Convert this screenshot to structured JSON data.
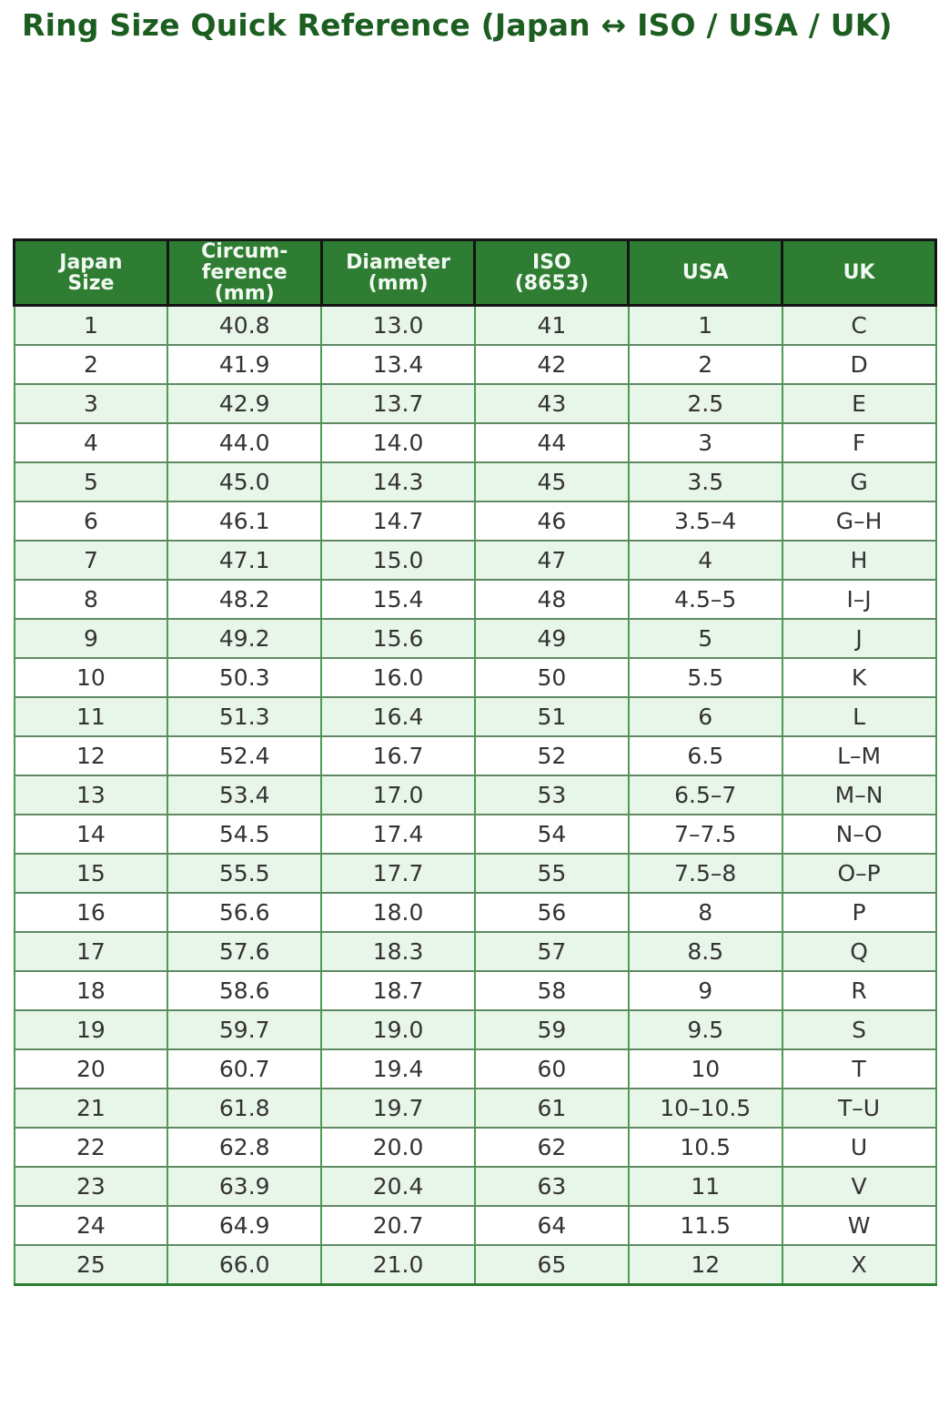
{
  "title": "Ring Size Quick Reference (Japan ↔ ISO / USA / UK)",
  "colors": {
    "title_green": "#1b5e20",
    "header_bg": "#2e7d32",
    "header_text": "#f2f8f2",
    "header_border": "#141414",
    "row_alt_bg": "#e8f5e9",
    "row_bg": "#ffffff",
    "body_border_vertical": "#4d9c51",
    "body_border_horizontal": "#5e8a62",
    "cell_text": "#333333"
  },
  "chart_data": {
    "type": "table",
    "title": "Ring Size Quick Reference (Japan ↔ ISO / USA / UK)",
    "columns": [
      {
        "id": "japan-size",
        "lines": [
          "Japan",
          "Size"
        ]
      },
      {
        "id": "circumference-mm",
        "lines": [
          "Circum-",
          "ference",
          "(mm)"
        ]
      },
      {
        "id": "diameter-mm",
        "lines": [
          "Diameter",
          "(mm)"
        ]
      },
      {
        "id": "iso-8653",
        "lines": [
          "ISO",
          "(8653)"
        ]
      },
      {
        "id": "usa",
        "lines": [
          "USA"
        ]
      },
      {
        "id": "uk",
        "lines": [
          "UK"
        ]
      }
    ],
    "rows": [
      [
        "1",
        "40.8",
        "13.0",
        "41",
        "1",
        "C"
      ],
      [
        "2",
        "41.9",
        "13.4",
        "42",
        "2",
        "D"
      ],
      [
        "3",
        "42.9",
        "13.7",
        "43",
        "2.5",
        "E"
      ],
      [
        "4",
        "44.0",
        "14.0",
        "44",
        "3",
        "F"
      ],
      [
        "5",
        "45.0",
        "14.3",
        "45",
        "3.5",
        "G"
      ],
      [
        "6",
        "46.1",
        "14.7",
        "46",
        "3.5–4",
        "G–H"
      ],
      [
        "7",
        "47.1",
        "15.0",
        "47",
        "4",
        "H"
      ],
      [
        "8",
        "48.2",
        "15.4",
        "48",
        "4.5–5",
        "I–J"
      ],
      [
        "9",
        "49.2",
        "15.6",
        "49",
        "5",
        "J"
      ],
      [
        "10",
        "50.3",
        "16.0",
        "50",
        "5.5",
        "K"
      ],
      [
        "11",
        "51.3",
        "16.4",
        "51",
        "6",
        "L"
      ],
      [
        "12",
        "52.4",
        "16.7",
        "52",
        "6.5",
        "L–M"
      ],
      [
        "13",
        "53.4",
        "17.0",
        "53",
        "6.5–7",
        "M–N"
      ],
      [
        "14",
        "54.5",
        "17.4",
        "54",
        "7–7.5",
        "N–O"
      ],
      [
        "15",
        "55.5",
        "17.7",
        "55",
        "7.5–8",
        "O–P"
      ],
      [
        "16",
        "56.6",
        "18.0",
        "56",
        "8",
        "P"
      ],
      [
        "17",
        "57.6",
        "18.3",
        "57",
        "8.5",
        "Q"
      ],
      [
        "18",
        "58.6",
        "18.7",
        "58",
        "9",
        "R"
      ],
      [
        "19",
        "59.7",
        "19.0",
        "59",
        "9.5",
        "S"
      ],
      [
        "20",
        "60.7",
        "19.4",
        "60",
        "10",
        "T"
      ],
      [
        "21",
        "61.8",
        "19.7",
        "61",
        "10–10.5",
        "T–U"
      ],
      [
        "22",
        "62.8",
        "20.0",
        "62",
        "10.5",
        "U"
      ],
      [
        "23",
        "63.9",
        "20.4",
        "63",
        "11",
        "V"
      ],
      [
        "24",
        "64.9",
        "20.7",
        "64",
        "11.5",
        "W"
      ],
      [
        "25",
        "66.0",
        "21.0",
        "65",
        "12",
        "X"
      ]
    ]
  }
}
